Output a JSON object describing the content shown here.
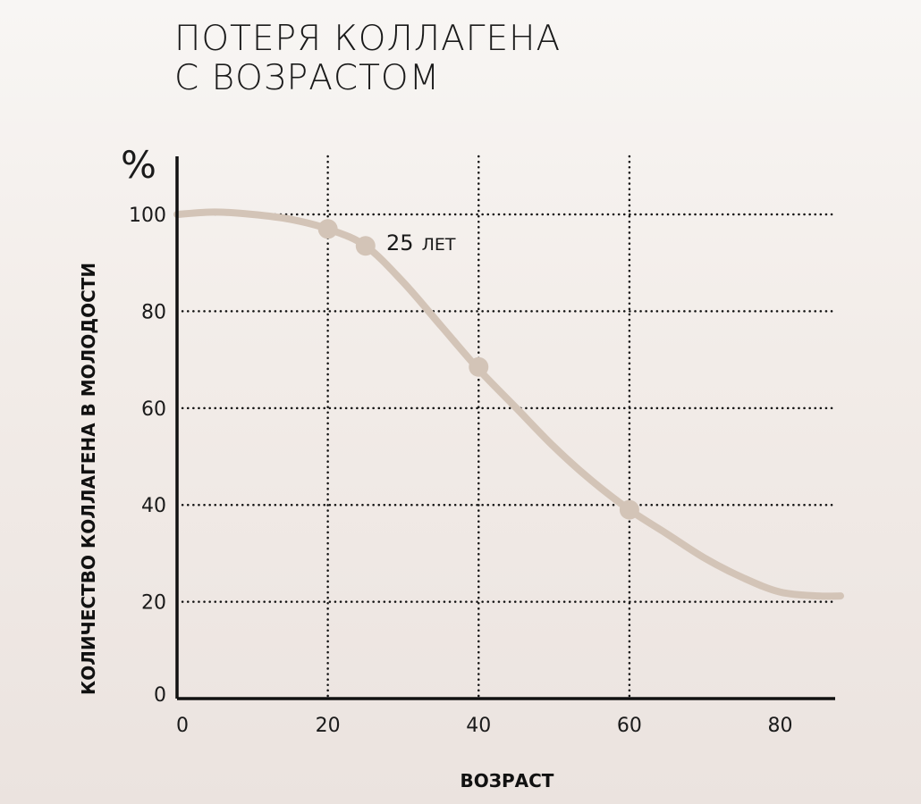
{
  "title_lines": [
    "ПОТЕРЯ КОЛЛАГЕНА",
    "С ВОЗРАСТОМ"
  ],
  "chart_data": {
    "type": "line",
    "y_unit_label": "%",
    "xlabel": "ВОЗРАСТ",
    "ylabel": "КОЛИЧЕСТВО КОЛЛАГЕНА В МОЛОДОСТИ",
    "xlim": [
      0,
      88
    ],
    "ylim": [
      0,
      112
    ],
    "x_ticks": [
      0,
      20,
      40,
      60,
      80
    ],
    "y_ticks": [
      0,
      20,
      40,
      60,
      80,
      100
    ],
    "x_tick_labels": [
      "0",
      "20",
      "40",
      "60",
      "80"
    ],
    "y_tick_labels": [
      "0",
      "20",
      "40",
      "60",
      "80",
      "100"
    ],
    "vertical_grid_x": [
      20,
      40,
      60
    ],
    "horizontal_grid_y": [
      20,
      40,
      60,
      80,
      100
    ],
    "grid_style": "dotted",
    "curve_color": "#d3c4b7",
    "series": [
      {
        "x": [
          0,
          5,
          10,
          15,
          20,
          25,
          30,
          35,
          40,
          45,
          50,
          55,
          60,
          65,
          70,
          75,
          80,
          85,
          88
        ],
        "y": [
          100,
          100.5,
          100,
          99,
          97,
          93.5,
          86,
          77,
          68,
          60,
          52,
          45,
          39,
          34,
          29,
          25,
          22,
          21.2,
          21.2
        ]
      }
    ],
    "highlighted_points": [
      {
        "x": 20,
        "y": 97
      },
      {
        "x": 25,
        "y": 93.5
      },
      {
        "x": 40,
        "y": 68.5
      },
      {
        "x": 60,
        "y": 39
      }
    ],
    "annotation": {
      "number": "25",
      "unit": "ЛЕТ",
      "x": 25,
      "y": 93.5
    }
  }
}
